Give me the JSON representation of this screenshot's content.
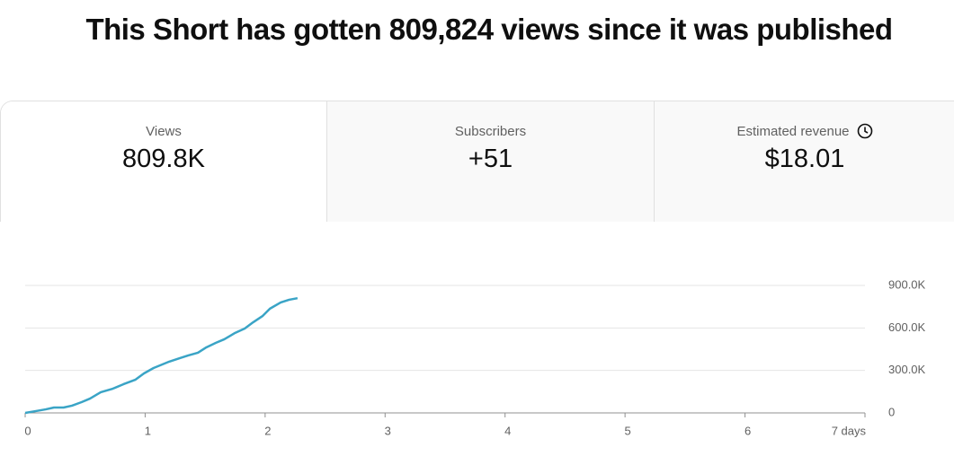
{
  "header": {
    "title": "This Short has gotten 809,824 views since it was published"
  },
  "cards": [
    {
      "label": "Views",
      "value": "809.8K"
    },
    {
      "label": "Subscribers",
      "value": "+51"
    },
    {
      "label": "Estimated revenue",
      "value": "$18.01"
    }
  ],
  "chart_data": {
    "type": "line",
    "x": [
      0,
      0.09,
      0.17,
      0.24,
      0.32,
      0.39,
      0.47,
      0.54,
      0.63,
      0.73,
      0.82,
      0.92,
      0.99,
      1.07,
      1.2,
      1.29,
      1.36,
      1.44,
      1.51,
      1.59,
      1.66,
      1.75,
      1.83,
      1.9,
      1.98,
      2.04,
      2.13,
      2.2,
      2.27
    ],
    "series": [
      {
        "color": "#3aa4c6",
        "values": [
          0,
          13000,
          25000,
          38000,
          38000,
          51000,
          76000,
          101000,
          146000,
          171000,
          203000,
          235000,
          279000,
          317000,
          362000,
          387000,
          406000,
          425000,
          463000,
          495000,
          520000,
          565000,
          596000,
          640000,
          685000,
          736000,
          780000,
          799000,
          810000
        ]
      }
    ],
    "xlim": [
      0,
      7
    ],
    "xticks": [
      0,
      1,
      2,
      3,
      4,
      5,
      6,
      {
        "value": 7,
        "label": "7 days"
      }
    ],
    "ylim": [
      0,
      900000
    ],
    "yticks": [
      0,
      {
        "value": 300000,
        "label": "300.0K"
      },
      {
        "value": 600000,
        "label": "600.0K"
      },
      {
        "value": 900000,
        "label": "900.0K"
      }
    ],
    "grid": true
  }
}
